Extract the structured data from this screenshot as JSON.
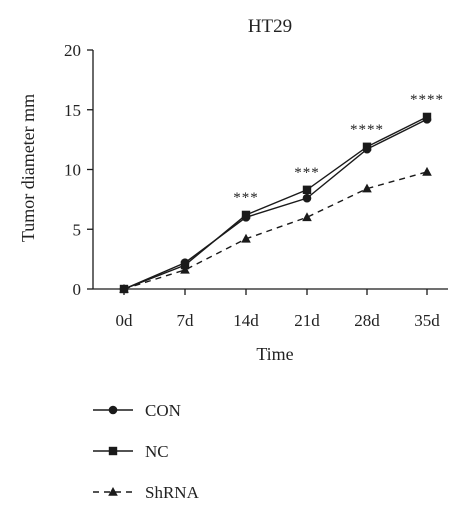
{
  "chart_data": {
    "type": "line",
    "title": "HT29",
    "xlabel": "Time",
    "ylabel": "Tumor diameter mm",
    "categories": [
      "0d",
      "7d",
      "14d",
      "21d",
      "28d",
      "35d"
    ],
    "ylim": [
      0,
      20
    ],
    "yticks": [
      0,
      5,
      10,
      15,
      20
    ],
    "grid": false,
    "legend_position": "bottom-left",
    "series": [
      {
        "name": "CON",
        "marker": "circle",
        "line_style": "solid",
        "values": [
          0,
          2.2,
          6.0,
          7.6,
          11.7,
          14.2
        ]
      },
      {
        "name": "NC",
        "marker": "square",
        "line_style": "solid",
        "values": [
          0,
          2.0,
          6.2,
          8.3,
          11.9,
          14.4
        ]
      },
      {
        "name": "ShRNA",
        "marker": "triangle",
        "line_style": "dashed",
        "values": [
          0,
          1.6,
          4.2,
          6.0,
          8.4,
          9.8
        ]
      }
    ],
    "annotations": [
      {
        "category": "14d",
        "text": "***"
      },
      {
        "category": "21d",
        "text": "***"
      },
      {
        "category": "28d",
        "text": "****"
      },
      {
        "category": "35d",
        "text": "****"
      }
    ]
  },
  "colors": {
    "line": "#1a1a1a",
    "text": "#222222",
    "background": "#ffffff"
  }
}
